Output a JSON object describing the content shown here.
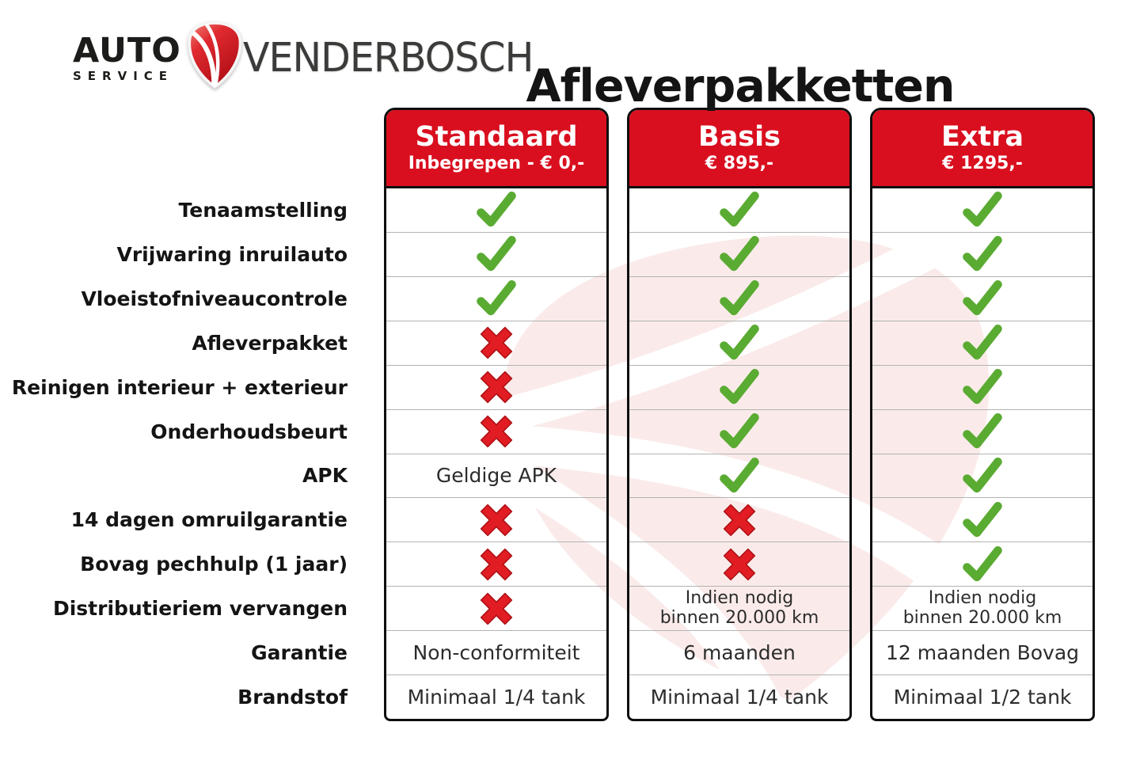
{
  "brand": {
    "auto": "AUTO",
    "service": "SERVICE",
    "name": "VENDERBOSCH",
    "badge_icon": "shield-swoosh-icon"
  },
  "title": "Afleverpakketten",
  "colors": {
    "header_red": "#d90f1f",
    "check_green": "#5aab32",
    "cross_red": "#e11d23",
    "column_border": "#0e0e0e",
    "row_divider": "#b3b3b3",
    "watermark_pink": "#f6dcd9"
  },
  "icons": {
    "check": "check-icon",
    "cross": "cross-icon"
  },
  "table": {
    "row_labels": [
      "Tenaamstelling",
      "Vrijwaring inruilauto",
      "Vloeistofniveaucontrole",
      "Afleverpakket",
      "Reinigen interieur + exterieur",
      "Onderhoudsbeurt",
      "APK",
      "14 dagen omruilgarantie",
      "Bovag pechhulp (1 jaar)",
      "Distributieriem vervangen",
      "Garantie",
      "Brandstof"
    ],
    "columns": [
      {
        "name": "Standaard",
        "price": "Inbegrepen - € 0,-",
        "cells": [
          {
            "type": "check"
          },
          {
            "type": "check"
          },
          {
            "type": "check"
          },
          {
            "type": "cross"
          },
          {
            "type": "cross"
          },
          {
            "type": "cross"
          },
          {
            "type": "text",
            "text": "Geldige APK"
          },
          {
            "type": "cross"
          },
          {
            "type": "cross"
          },
          {
            "type": "cross"
          },
          {
            "type": "text",
            "text": "Non-conformiteit"
          },
          {
            "type": "text",
            "text": "Minimaal 1/4 tank"
          }
        ]
      },
      {
        "name": "Basis",
        "price": "€ 895,-",
        "cells": [
          {
            "type": "check"
          },
          {
            "type": "check"
          },
          {
            "type": "check"
          },
          {
            "type": "check"
          },
          {
            "type": "check"
          },
          {
            "type": "check"
          },
          {
            "type": "check"
          },
          {
            "type": "cross"
          },
          {
            "type": "cross"
          },
          {
            "type": "text",
            "text": "Indien nodig\nbinnen 20.000 km",
            "small": true
          },
          {
            "type": "text",
            "text": "6 maanden"
          },
          {
            "type": "text",
            "text": "Minimaal 1/4 tank"
          }
        ]
      },
      {
        "name": "Extra",
        "price": "€ 1295,-",
        "cells": [
          {
            "type": "check"
          },
          {
            "type": "check"
          },
          {
            "type": "check"
          },
          {
            "type": "check"
          },
          {
            "type": "check"
          },
          {
            "type": "check"
          },
          {
            "type": "check"
          },
          {
            "type": "check"
          },
          {
            "type": "check"
          },
          {
            "type": "text",
            "text": "Indien nodig\nbinnen 20.000 km",
            "small": true
          },
          {
            "type": "text",
            "text": "12 maanden Bovag"
          },
          {
            "type": "text",
            "text": "Minimaal 1/2 tank"
          }
        ]
      }
    ]
  }
}
